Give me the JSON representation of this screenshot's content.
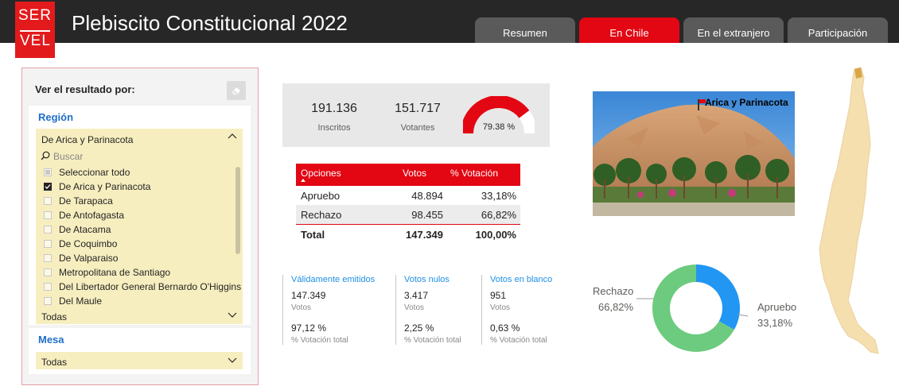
{
  "header": {
    "logo_line1": "SER",
    "logo_line2": "VEL",
    "title": "Plebiscito Constitucional 2022",
    "tabs": [
      "Resumen",
      "En Chile",
      "En el extranjero",
      "Participación"
    ],
    "active_tab": "En Chile",
    "colors": {
      "bar": "#272727",
      "brand_red": "#e31a1c",
      "tab": "#5a5a5a",
      "tab_active": "#e30613"
    }
  },
  "filters": {
    "heading": "Ver el resultado por:",
    "region": {
      "label": "Región",
      "selected": "De Arica y Parinacota",
      "search_placeholder": "Buscar",
      "options": [
        {
          "label": "Seleccionar todo",
          "state": "partial"
        },
        {
          "label": "De Arica y Parinacota",
          "state": "checked"
        },
        {
          "label": "De Tarapaca",
          "state": "unchecked"
        },
        {
          "label": "De Antofagasta",
          "state": "unchecked"
        },
        {
          "label": "De Atacama",
          "state": "unchecked"
        },
        {
          "label": "De Coquimbo",
          "state": "unchecked"
        },
        {
          "label": "De Valparaiso",
          "state": "unchecked"
        },
        {
          "label": "Metropolitana de Santiago",
          "state": "unchecked"
        },
        {
          "label": "Del Libertador General Bernardo O'Higgins",
          "state": "unchecked"
        },
        {
          "label": "Del Maule",
          "state": "unchecked"
        }
      ],
      "comuna_value": "Todas"
    },
    "mesa": {
      "label": "Mesa",
      "value": "Todas"
    }
  },
  "summary": {
    "inscritos_value": "191.136",
    "inscritos_label": "Inscritos",
    "votantes_value": "151.717",
    "votantes_label": "Votantes",
    "gauge_label": "79.38 %",
    "gauge_fraction": 0.7938
  },
  "results_table": {
    "headers": [
      "Opciones",
      "Votos",
      "% Votación"
    ],
    "rows": [
      {
        "option": "Apruebo",
        "votes": "48.894",
        "percent": "33,18%"
      },
      {
        "option": "Rechazo",
        "votes": "98.455",
        "percent": "66,82%"
      }
    ],
    "total": {
      "option": "Total",
      "votes": "147.349",
      "percent": "100,00%"
    }
  },
  "stats": [
    {
      "title": "Válidamente emitidos",
      "value": "147.349",
      "sub": "Votos",
      "pct": "97,12 %",
      "pct_sub": "% Votación total"
    },
    {
      "title": "Votos nulos",
      "value": "3.417",
      "sub": "Votos",
      "pct": "2,25 %",
      "pct_sub": "% Votación total"
    },
    {
      "title": "Votos en blanco",
      "value": "951",
      "sub": "Votos",
      "pct": "0,63 %",
      "pct_sub": "% Votación total"
    }
  ],
  "photo": {
    "caption": "Arica y Parinacota"
  },
  "donut": {
    "rechazo_label": "Rechazo",
    "rechazo_pct": "66,82%",
    "apruebo_label": "Apruebo",
    "apruebo_pct": "33,18%",
    "rechazo_fraction": 0.6682,
    "apruebo_fraction": 0.3318,
    "colors": {
      "rechazo": "#6ccb7e",
      "apruebo": "#2196f3"
    }
  }
}
